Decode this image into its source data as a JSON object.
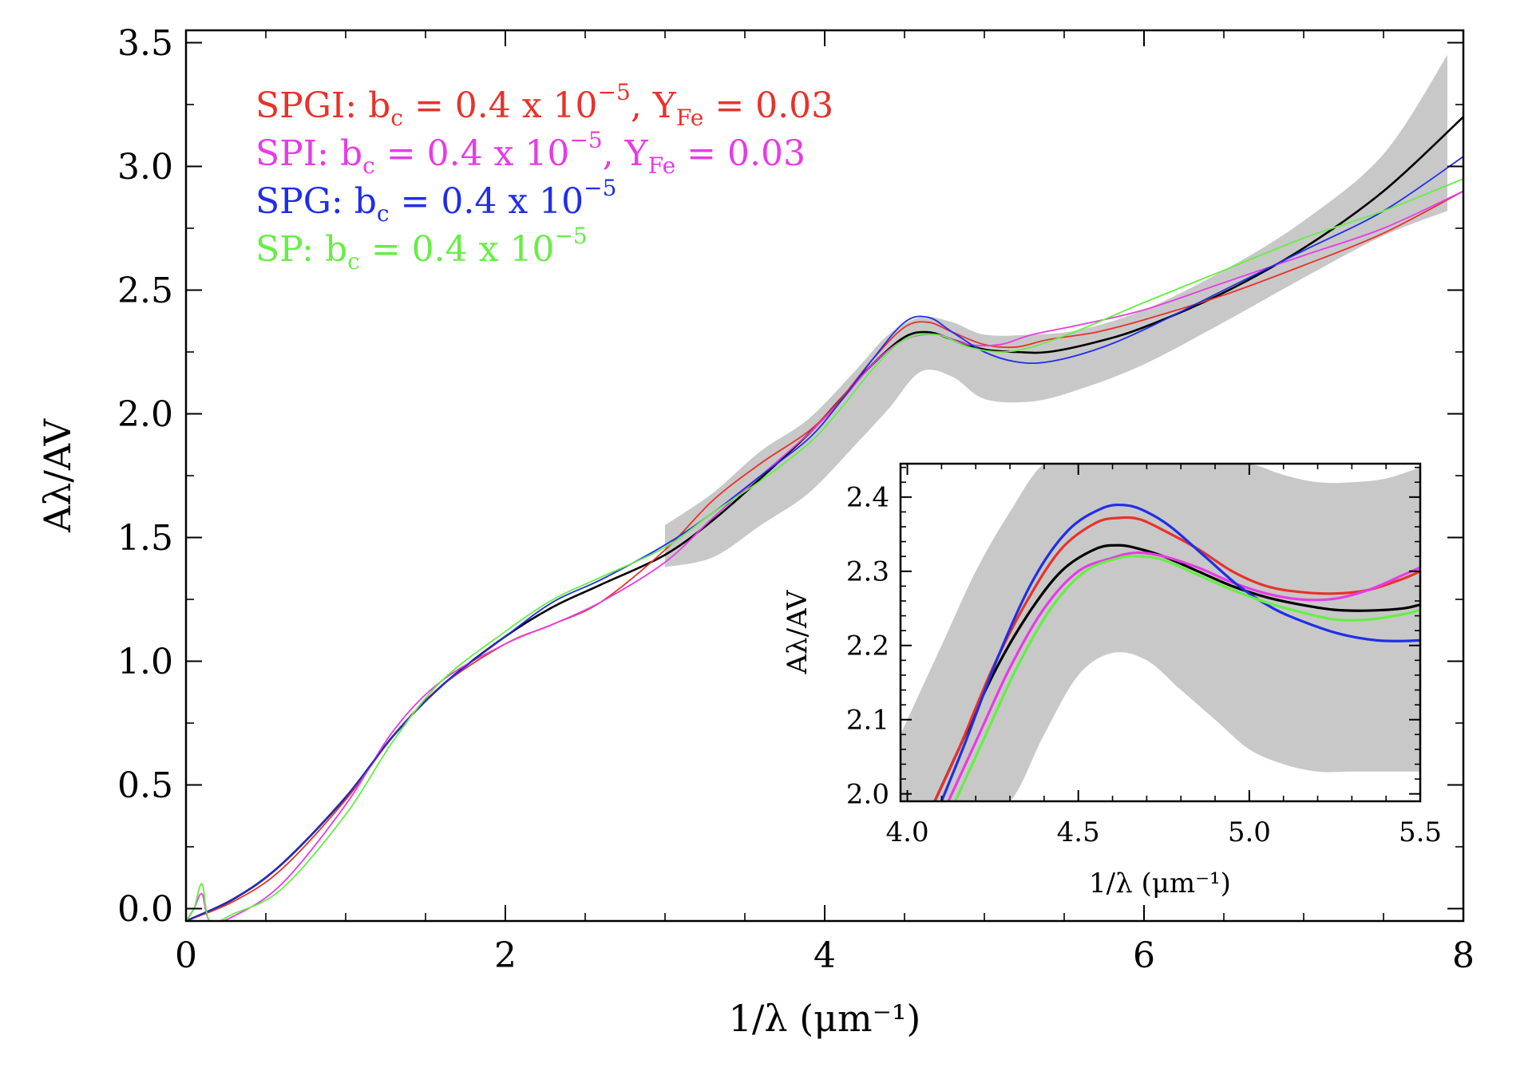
{
  "chart_data": [
    {
      "name": "main",
      "type": "line",
      "xlabel": "1/λ (μm⁻¹)",
      "ylabel": "Aλ/AV",
      "xlim": [
        0,
        8
      ],
      "ylim": [
        -0.05,
        3.55
      ],
      "xticks": [
        0,
        2,
        4,
        6,
        8
      ],
      "xtick_labels": [
        "0",
        "2",
        "4",
        "6",
        "8"
      ],
      "yticks": [
        0.0,
        0.5,
        1.0,
        1.5,
        2.0,
        2.5,
        3.0,
        3.5
      ],
      "ytick_labels": [
        "0.0",
        "0.5",
        "1.0",
        "1.5",
        "2.0",
        "2.5",
        "3.0",
        "3.5"
      ],
      "band": {
        "color": "#c8c8c8",
        "x": [
          3.0,
          3.3,
          3.6,
          3.9,
          4.2,
          4.4,
          4.6,
          4.8,
          5.0,
          5.3,
          5.6,
          6.0,
          6.5,
          7.0,
          7.5,
          7.9
        ],
        "upper": [
          1.55,
          1.68,
          1.85,
          1.98,
          2.18,
          2.32,
          2.39,
          2.37,
          2.32,
          2.32,
          2.34,
          2.42,
          2.58,
          2.78,
          3.05,
          3.45
        ],
        "lower": [
          1.38,
          1.42,
          1.55,
          1.68,
          1.88,
          2.02,
          2.17,
          2.15,
          2.06,
          2.05,
          2.1,
          2.2,
          2.37,
          2.55,
          2.72,
          2.82
        ]
      },
      "series": [
        {
          "name": "black",
          "color": "#000000",
          "width": 2.6,
          "x": [
            0,
            0.3,
            0.6,
            1.0,
            1.3,
            1.6,
            2.0,
            2.3,
            2.6,
            3.0,
            3.3,
            3.6,
            3.9,
            4.1,
            4.3,
            4.5,
            4.65,
            4.8,
            5.0,
            5.2,
            5.4,
            5.7,
            6.0,
            6.5,
            7.0,
            7.5,
            8.0
          ],
          "y": [
            -0.05,
            0.04,
            0.18,
            0.45,
            0.7,
            0.9,
            1.1,
            1.22,
            1.31,
            1.43,
            1.57,
            1.74,
            1.92,
            2.06,
            2.2,
            2.31,
            2.33,
            2.3,
            2.26,
            2.25,
            2.25,
            2.29,
            2.35,
            2.49,
            2.67,
            2.9,
            3.2
          ]
        },
        {
          "name": "SPGI",
          "color": "#e8322a",
          "width": 1.8,
          "x": [
            0,
            0.3,
            0.6,
            1.0,
            1.3,
            1.6,
            2.0,
            2.3,
            2.6,
            3.0,
            3.3,
            3.6,
            3.9,
            4.1,
            4.3,
            4.5,
            4.65,
            4.8,
            5.0,
            5.2,
            5.4,
            5.7,
            6.0,
            6.5,
            7.0,
            7.5,
            8.0
          ],
          "y": [
            -0.05,
            0.03,
            0.16,
            0.44,
            0.7,
            0.9,
            1.07,
            1.15,
            1.24,
            1.45,
            1.65,
            1.8,
            1.93,
            2.06,
            2.22,
            2.35,
            2.37,
            2.33,
            2.28,
            2.27,
            2.3,
            2.33,
            2.38,
            2.48,
            2.6,
            2.73,
            2.9
          ]
        },
        {
          "name": "SPI",
          "color": "#e63ce6",
          "width": 1.8,
          "x": [
            0,
            0.05,
            0.1,
            0.15,
            0.3,
            0.6,
            1.0,
            1.3,
            1.6,
            2.0,
            2.3,
            2.6,
            3.0,
            3.3,
            3.6,
            3.9,
            4.1,
            4.3,
            4.5,
            4.7,
            4.9,
            5.1,
            5.3,
            5.6,
            6.0,
            6.5,
            7.0,
            7.5,
            8.0
          ],
          "y": [
            -0.05,
            0.0,
            0.06,
            -0.05,
            -0.03,
            0.1,
            0.42,
            0.72,
            0.92,
            1.07,
            1.15,
            1.24,
            1.4,
            1.58,
            1.75,
            1.92,
            2.05,
            2.2,
            2.3,
            2.32,
            2.28,
            2.28,
            2.32,
            2.36,
            2.42,
            2.53,
            2.64,
            2.75,
            2.9
          ]
        },
        {
          "name": "SPG",
          "color": "#1f2ee8",
          "width": 1.8,
          "x": [
            0,
            0.3,
            0.6,
            1.0,
            1.3,
            1.6,
            2.0,
            2.3,
            2.6,
            3.0,
            3.3,
            3.6,
            3.9,
            4.1,
            4.3,
            4.5,
            4.65,
            4.8,
            5.0,
            5.2,
            5.4,
            5.7,
            6.0,
            6.5,
            7.0,
            7.5,
            8.0
          ],
          "y": [
            -0.05,
            0.04,
            0.18,
            0.45,
            0.7,
            0.9,
            1.1,
            1.24,
            1.33,
            1.47,
            1.6,
            1.75,
            1.9,
            2.05,
            2.22,
            2.37,
            2.39,
            2.33,
            2.25,
            2.21,
            2.21,
            2.26,
            2.34,
            2.5,
            2.66,
            2.82,
            3.04
          ]
        },
        {
          "name": "SP",
          "color": "#66ee44",
          "width": 1.8,
          "x": [
            0,
            0.05,
            0.1,
            0.15,
            0.3,
            0.6,
            1.0,
            1.3,
            1.6,
            2.0,
            2.3,
            2.6,
            3.0,
            3.3,
            3.6,
            3.9,
            4.1,
            4.3,
            4.5,
            4.7,
            4.9,
            5.1,
            5.3,
            5.6,
            6.0,
            6.5,
            7.0,
            7.5,
            8.0
          ],
          "y": [
            -0.05,
            0.0,
            0.1,
            -0.05,
            -0.02,
            0.08,
            0.38,
            0.68,
            0.92,
            1.12,
            1.25,
            1.34,
            1.46,
            1.6,
            1.73,
            1.88,
            2.02,
            2.18,
            2.3,
            2.32,
            2.27,
            2.25,
            2.27,
            2.34,
            2.45,
            2.58,
            2.71,
            2.82,
            2.95
          ]
        }
      ],
      "legend": {
        "placement": "top-left",
        "entries": [
          {
            "color": "#e8322a",
            "prefix": "SPGI: b",
            "sub": "c",
            "mid": " = 0.4 x 10",
            "sup": "−5",
            "tail": ", Y",
            "sub2": "Fe",
            "end": " = 0.03"
          },
          {
            "color": "#e63ce6",
            "prefix": "SPI: b",
            "sub": "c",
            "mid": " = 0.4 x 10",
            "sup": "−5",
            "tail": ", Y",
            "sub2": "Fe",
            "end": " = 0.03"
          },
          {
            "color": "#1f2ee8",
            "prefix": "SPG: b",
            "sub": "c",
            "mid": " = 0.4 x 10",
            "sup": "−5",
            "tail": "",
            "sub2": "",
            "end": ""
          },
          {
            "color": "#66ee44",
            "prefix": "SP: b",
            "sub": "c",
            "mid": " = 0.4 x 10",
            "sup": "−5",
            "tail": "",
            "sub2": "",
            "end": ""
          }
        ]
      }
    },
    {
      "name": "inset",
      "type": "line",
      "xlabel": "1/λ (μm⁻¹)",
      "ylabel": "Aλ/AV",
      "xlim": [
        3.98,
        5.5
      ],
      "ylim": [
        1.99,
        2.445
      ],
      "xticks": [
        4.0,
        4.5,
        5.0,
        5.5
      ],
      "xtick_labels": [
        "4.0",
        "4.5",
        "5.0",
        "5.5"
      ],
      "yticks": [
        2.0,
        2.1,
        2.2,
        2.3,
        2.4
      ],
      "ytick_labels": [
        "2.0",
        "2.1",
        "2.2",
        "2.3",
        "2.4"
      ],
      "band": {
        "color": "#c8c8c8",
        "x": [
          3.98,
          4.1,
          4.2,
          4.3,
          4.4,
          4.5,
          4.6,
          4.7,
          4.8,
          4.9,
          5.0,
          5.1,
          5.2,
          5.3,
          5.4,
          5.5
        ],
        "upper": [
          2.08,
          2.2,
          2.3,
          2.38,
          2.445,
          2.445,
          2.445,
          2.445,
          2.445,
          2.445,
          2.445,
          2.43,
          2.42,
          2.42,
          2.425,
          2.44
        ],
        "lower": [
          1.99,
          1.99,
          1.99,
          1.99,
          2.08,
          2.16,
          2.19,
          2.18,
          2.14,
          2.1,
          2.06,
          2.04,
          2.03,
          2.03,
          2.03,
          2.03
        ]
      },
      "series": [
        {
          "name": "black",
          "color": "#000000",
          "width": 3.2,
          "x": [
            4.08,
            4.15,
            4.25,
            4.35,
            4.45,
            4.55,
            4.62,
            4.68,
            4.75,
            4.85,
            4.95,
            5.05,
            5.15,
            5.25,
            5.35,
            5.45,
            5.5
          ],
          "y": [
            1.99,
            2.06,
            2.16,
            2.24,
            2.3,
            2.33,
            2.335,
            2.33,
            2.32,
            2.3,
            2.28,
            2.265,
            2.255,
            2.248,
            2.247,
            2.25,
            2.255
          ]
        },
        {
          "name": "SPGI",
          "color": "#e8322a",
          "width": 3.2,
          "x": [
            4.08,
            4.15,
            4.25,
            4.35,
            4.45,
            4.55,
            4.62,
            4.68,
            4.75,
            4.85,
            4.95,
            5.05,
            5.15,
            5.25,
            5.35,
            5.45,
            5.5
          ],
          "y": [
            1.99,
            2.06,
            2.17,
            2.26,
            2.33,
            2.365,
            2.372,
            2.37,
            2.355,
            2.33,
            2.3,
            2.28,
            2.272,
            2.27,
            2.275,
            2.29,
            2.3
          ]
        },
        {
          "name": "SPI",
          "color": "#e63ce6",
          "width": 3.2,
          "x": [
            4.12,
            4.2,
            4.3,
            4.4,
            4.5,
            4.6,
            4.67,
            4.75,
            4.85,
            4.95,
            5.05,
            5.15,
            5.25,
            5.35,
            5.45,
            5.5
          ],
          "y": [
            1.99,
            2.07,
            2.17,
            2.25,
            2.3,
            2.318,
            2.325,
            2.32,
            2.305,
            2.285,
            2.27,
            2.262,
            2.263,
            2.275,
            2.295,
            2.305
          ]
        },
        {
          "name": "SPG",
          "color": "#1f2ee8",
          "width": 3.2,
          "x": [
            4.1,
            4.17,
            4.27,
            4.37,
            4.47,
            4.57,
            4.64,
            4.7,
            4.77,
            4.87,
            4.97,
            5.07,
            5.17,
            5.27,
            5.37,
            5.45,
            5.5
          ],
          "y": [
            1.99,
            2.07,
            2.19,
            2.29,
            2.355,
            2.385,
            2.389,
            2.38,
            2.36,
            2.32,
            2.28,
            2.25,
            2.23,
            2.215,
            2.207,
            2.206,
            2.207
          ]
        },
        {
          "name": "SP",
          "color": "#66ee44",
          "width": 3.2,
          "x": [
            4.14,
            4.22,
            4.32,
            4.42,
            4.52,
            4.62,
            4.68,
            4.75,
            4.85,
            4.95,
            5.05,
            5.15,
            5.25,
            5.35,
            5.45,
            5.5
          ],
          "y": [
            1.99,
            2.07,
            2.17,
            2.25,
            2.3,
            2.318,
            2.32,
            2.315,
            2.295,
            2.275,
            2.258,
            2.245,
            2.235,
            2.235,
            2.242,
            2.248
          ]
        }
      ]
    }
  ]
}
